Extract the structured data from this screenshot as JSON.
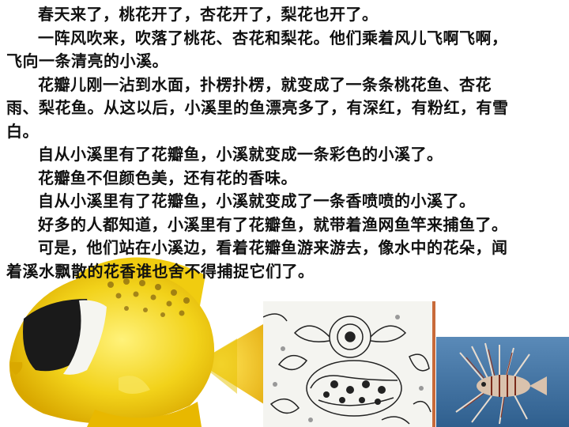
{
  "paragraphs": [
    "春天来了，桃花开了，杏花开了，梨花也开了。",
    "一阵风吹来，吹落了桃花、杏花和梨花。他们乘着风儿飞啊飞啊，飞向一条清亮的小溪。",
    "花瓣儿刚一沾到水面，扑楞扑楞，就变成了一条条桃花鱼、杏花雨、梨花鱼。从这以后，小溪里的鱼漂亮多了，有深红，有粉红，有雪白。",
    "自从小溪里有了花瓣鱼，小溪就变成一条彩色的小溪了。",
    "花瓣鱼不但颜色美，还有花的香味。",
    "自从小溪里有了花瓣鱼，小溪就变成了一条香喷喷的小溪了。",
    "好多的人都知道，小溪里有了花瓣鱼，就带着渔网鱼竿来捕鱼了。",
    "可是，他们站在小溪边，看着花瓣鱼游来游去，像水中的花朵，闻着溪水飘散的花香谁也舍不得捕捉它们了。"
  ],
  "images": {
    "yellow_fish": "butterflyfish-photo",
    "drawing": "fish-line-drawing",
    "lionfish": "lionfish-photo"
  }
}
